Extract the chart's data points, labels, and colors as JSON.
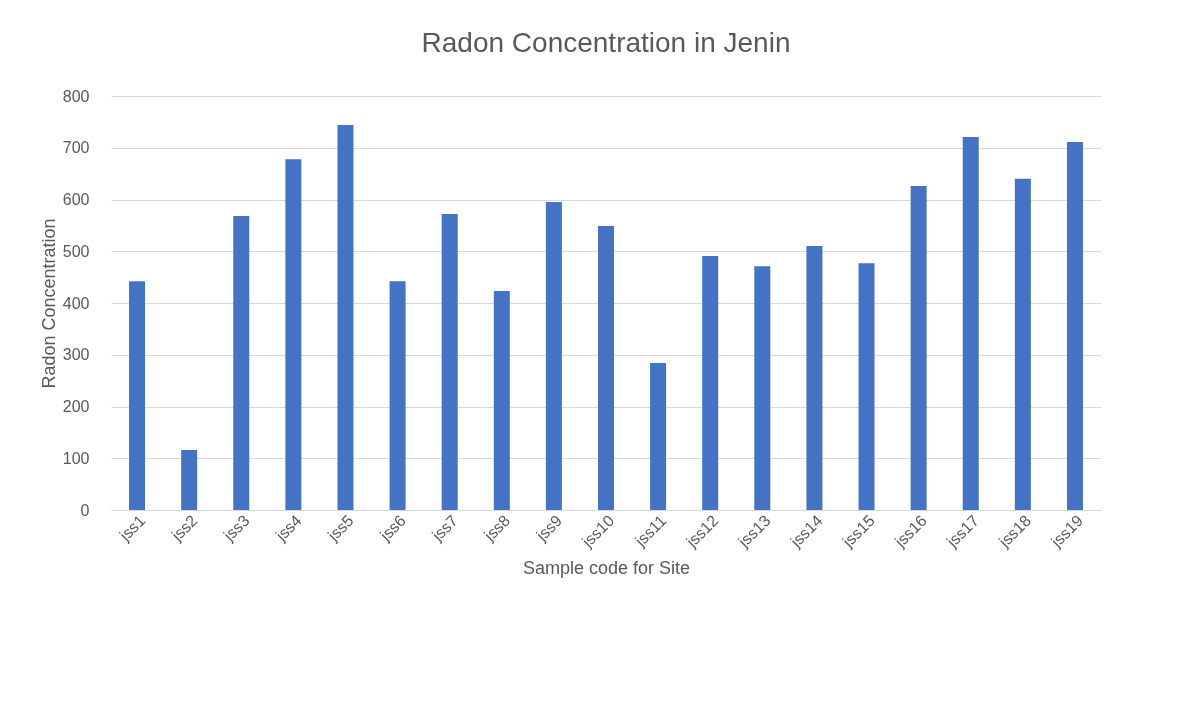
{
  "chart_data": {
    "type": "bar",
    "title": "Radon Concentration in Jenin",
    "xlabel": "Sample code for Site",
    "ylabel": "Radon Concentration",
    "categories": [
      "jss1",
      "jss2",
      "jss3",
      "jss4",
      "jss5",
      "jss6",
      "jss7",
      "jss8",
      "jss9",
      "jss10",
      "jss11",
      "jss12",
      "jss13",
      "jss14",
      "jss15",
      "jss16",
      "jss17",
      "jss18",
      "jss19"
    ],
    "values": [
      442,
      116,
      568,
      678,
      744,
      442,
      572,
      423,
      595,
      549,
      284,
      491,
      471,
      510,
      477,
      626,
      721,
      640,
      711
    ],
    "color": "#4472c4",
    "ylim": [
      0,
      800
    ],
    "yticks": [
      0,
      100,
      200,
      300,
      400,
      500,
      600,
      700,
      800
    ],
    "grid": "y"
  }
}
